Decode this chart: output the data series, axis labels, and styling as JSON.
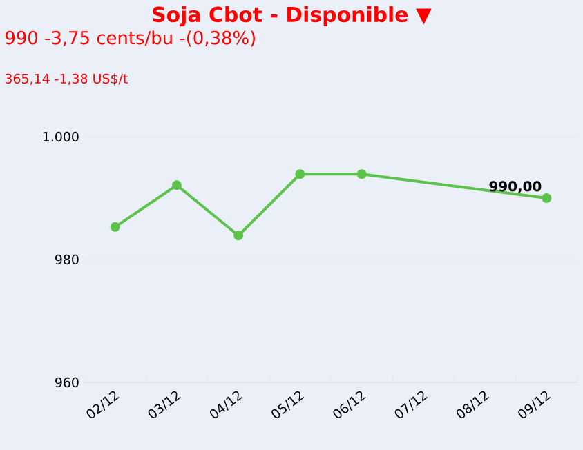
{
  "chart_data": {
    "type": "line",
    "title": "Soja Cbot - Disponible ▼",
    "subtitle": "990 -3,75 cents/bu -(0,38%)",
    "annotations": [
      "365,14 -1,38 US$/t"
    ],
    "categories": [
      "02/12",
      "03/12",
      "04/12",
      "05/12",
      "06/12",
      "07/12",
      "08/12",
      "09/12"
    ],
    "series": [
      {
        "color": "#5cc24a",
        "values": [
          985.3,
          992.1,
          983.9,
          993.9,
          993.9,
          null,
          null,
          990.0
        ],
        "value_labels": [
          null,
          null,
          null,
          null,
          null,
          null,
          null,
          "990,00"
        ]
      }
    ],
    "ylim": [
      960,
      1000
    ],
    "yticks": [
      960,
      980,
      {
        "value": 1000,
        "label": "1.000"
      }
    ],
    "grid": "y",
    "marker": "circle",
    "line_style": "solid"
  }
}
